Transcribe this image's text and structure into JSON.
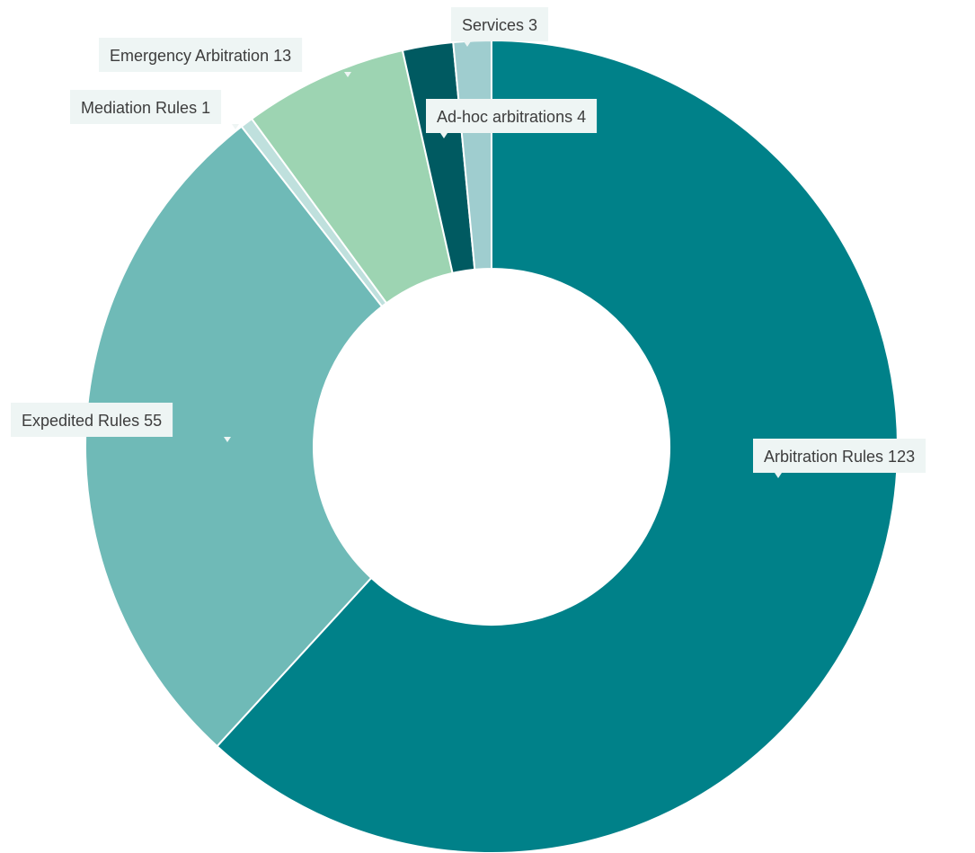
{
  "chart_data": {
    "type": "pie",
    "donut": true,
    "slices": [
      {
        "label": "Arbitration Rules 123",
        "name": "Arbitration Rules",
        "value": 123,
        "color": "#008189"
      },
      {
        "label": "Expedited Rules 55",
        "name": "Expedited Rules",
        "value": 55,
        "color": "#6fbab7"
      },
      {
        "label": "Mediation Rules 1",
        "name": "Mediation Rules",
        "value": 1,
        "color": "#bfe0dd"
      },
      {
        "label": "Emergency Arbitration 13",
        "name": "Emergency Arbitration",
        "value": 13,
        "color": "#9dd4b2"
      },
      {
        "label": "Ad-hoc arbitrations 4",
        "name": "Ad-hoc arbitrations",
        "value": 4,
        "color": "#005a61"
      },
      {
        "label": "Services 3",
        "name": "Services",
        "value": 3,
        "color": "#9fcdcf"
      }
    ],
    "legend": "none"
  }
}
